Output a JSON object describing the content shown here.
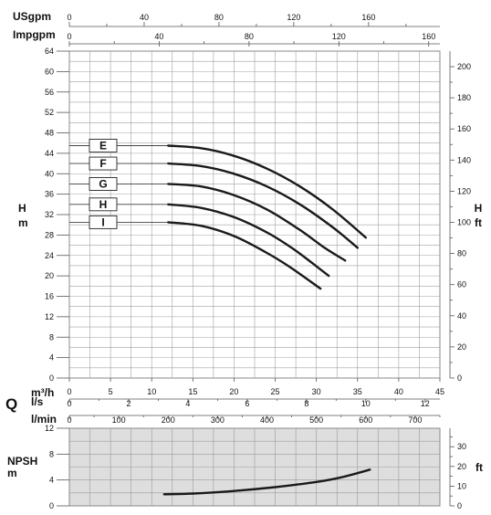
{
  "chart_data": [
    {
      "type": "line",
      "title": "",
      "x_axis": {
        "label": "m³/h",
        "range": [
          0,
          45
        ],
        "ticks": [
          0,
          5,
          10,
          15,
          20,
          25,
          30,
          35,
          40,
          45
        ]
      },
      "y_axis": {
        "label": "H m",
        "range": [
          0,
          64
        ],
        "ticks": [
          0,
          4,
          8,
          12,
          16,
          20,
          24,
          28,
          32,
          36,
          40,
          44,
          48,
          52,
          56,
          60,
          64
        ]
      },
      "y_axis_right": {
        "label": "H ft",
        "ticks": [
          0,
          20,
          40,
          60,
          80,
          100,
          120,
          140,
          160,
          180,
          200
        ]
      },
      "secondary_x_axes": [
        {
          "label": "USgpm",
          "ticks": [
            0,
            40,
            80,
            120,
            160
          ]
        },
        {
          "label": "Impgpm",
          "ticks": [
            0,
            40,
            80,
            120,
            160
          ]
        },
        {
          "label": "l/s",
          "ticks": [
            0,
            2,
            4,
            6,
            8,
            10,
            12
          ]
        },
        {
          "label": "l/min",
          "ticks": [
            0,
            100,
            200,
            300,
            400,
            500,
            600,
            700
          ]
        }
      ],
      "q_label": "Q",
      "grid": true,
      "series": [
        {
          "name": "E",
          "label_x": 0.2,
          "points": [
            [
              0,
              45.5
            ],
            [
              12,
              45.5
            ],
            [
              16,
              45
            ],
            [
              20,
              43.5
            ],
            [
              24,
              41
            ],
            [
              28,
              37.5
            ],
            [
              32,
              33
            ],
            [
              36,
              27.5
            ]
          ]
        },
        {
          "name": "F",
          "label_x": 0.2,
          "points": [
            [
              0,
              42
            ],
            [
              12,
              42
            ],
            [
              16,
              41.5
            ],
            [
              20,
              40
            ],
            [
              24,
              37.5
            ],
            [
              28,
              34
            ],
            [
              32,
              29.5
            ],
            [
              35,
              25.5
            ]
          ]
        },
        {
          "name": "G",
          "label_x": 0.2,
          "points": [
            [
              0,
              38
            ],
            [
              12,
              38
            ],
            [
              16,
              37.5
            ],
            [
              20,
              35.8
            ],
            [
              24,
              33
            ],
            [
              28,
              29
            ],
            [
              31,
              25.5
            ],
            [
              33.5,
              23
            ]
          ]
        },
        {
          "name": "H",
          "label_x": 0.2,
          "points": [
            [
              0,
              34
            ],
            [
              12,
              34
            ],
            [
              16,
              33.3
            ],
            [
              20,
              31.5
            ],
            [
              24,
              28.5
            ],
            [
              27,
              25.5
            ],
            [
              29.5,
              22.5
            ],
            [
              31.5,
              20
            ]
          ]
        },
        {
          "name": "I",
          "label_x": 0.2,
          "points": [
            [
              0,
              30.5
            ],
            [
              12,
              30.5
            ],
            [
              16,
              29.8
            ],
            [
              20,
              27.8
            ],
            [
              24,
              24.5
            ],
            [
              27,
              21.5
            ],
            [
              30.5,
              17.5
            ]
          ]
        }
      ]
    },
    {
      "type": "line",
      "title": "",
      "x_axis": {
        "range": [
          0,
          45
        ]
      },
      "y_axis": {
        "label": "NPSH m",
        "range": [
          0,
          12
        ],
        "ticks": [
          0,
          4,
          8,
          12
        ]
      },
      "y_axis_right": {
        "label": "ft",
        "ticks": [
          0,
          10,
          20,
          30
        ]
      },
      "grid": true,
      "series": [
        {
          "points": [
            [
              11.5,
              1.8
            ],
            [
              15,
              1.9
            ],
            [
              20,
              2.3
            ],
            [
              25,
              2.9
            ],
            [
              30,
              3.7
            ],
            [
              33,
              4.4
            ],
            [
              36.5,
              5.6
            ]
          ]
        }
      ]
    }
  ],
  "colors": {
    "curve": "#1a1a1a",
    "grid": "#a0a0a0",
    "npsh_bg": "#dedede"
  }
}
